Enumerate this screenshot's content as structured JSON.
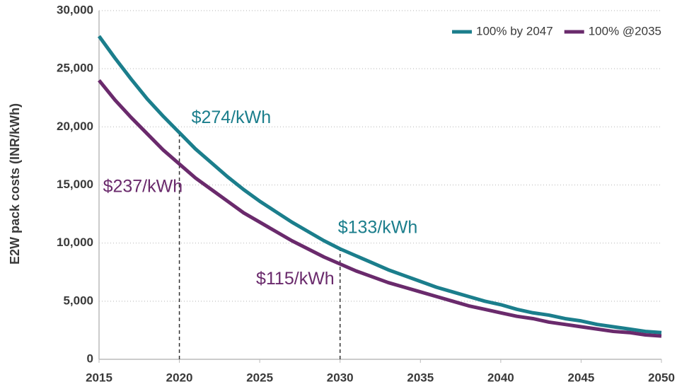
{
  "chart_data": {
    "type": "line",
    "y_label": "E2W pack costs (INR/kWh)",
    "x": [
      2015,
      2016,
      2017,
      2018,
      2019,
      2020,
      2021,
      2022,
      2023,
      2024,
      2025,
      2026,
      2027,
      2028,
      2029,
      2030,
      2031,
      2032,
      2033,
      2034,
      2035,
      2036,
      2037,
      2038,
      2039,
      2040,
      2041,
      2042,
      2043,
      2044,
      2045,
      2046,
      2047,
      2048,
      2049,
      2050
    ],
    "series": [
      {
        "name": "100% by 2047",
        "color": "#1b7e8c",
        "values": [
          27800,
          25900,
          24100,
          22400,
          20900,
          19500,
          18100,
          16900,
          15700,
          14600,
          13600,
          12700,
          11800,
          11000,
          10200,
          9500,
          8900,
          8300,
          7700,
          7200,
          6700,
          6200,
          5800,
          5400,
          5000,
          4700,
          4300,
          4000,
          3800,
          3500,
          3300,
          3000,
          2800,
          2600,
          2400,
          2300
        ]
      },
      {
        "name": "100% @2035",
        "color": "#6a2a6c",
        "values": [
          24000,
          22300,
          20800,
          19400,
          18000,
          16800,
          15600,
          14600,
          13600,
          12600,
          11800,
          11000,
          10200,
          9500,
          8800,
          8200,
          7600,
          7100,
          6600,
          6200,
          5800,
          5400,
          5000,
          4600,
          4300,
          4000,
          3700,
          3500,
          3200,
          3000,
          2800,
          2600,
          2400,
          2300,
          2100,
          2000
        ]
      }
    ],
    "annotations": [
      {
        "text": "$274/kWh",
        "x": 2020,
        "series": 0
      },
      {
        "text": "$237/kWh",
        "x": 2020,
        "series": 1
      },
      {
        "text": "$133/kWh",
        "x": 2030,
        "series": 0
      },
      {
        "text": "$115/kWh",
        "x": 2030,
        "series": 1
      }
    ],
    "xlim": [
      2015,
      2050
    ],
    "xticks": [
      2015,
      2020,
      2025,
      2030,
      2035,
      2040,
      2045,
      2050
    ],
    "ylim": [
      0,
      30000
    ],
    "yticks": [
      0,
      {
        "value": 5000,
        "label": "5,000"
      },
      {
        "value": 10000,
        "label": "10,000"
      },
      {
        "value": 15000,
        "label": "15,000"
      },
      {
        "value": 20000,
        "label": "20,000"
      },
      {
        "value": 25000,
        "label": "25,000"
      },
      {
        "value": 30000,
        "label": "30,000"
      }
    ],
    "grid": true,
    "legend": "top-right"
  }
}
